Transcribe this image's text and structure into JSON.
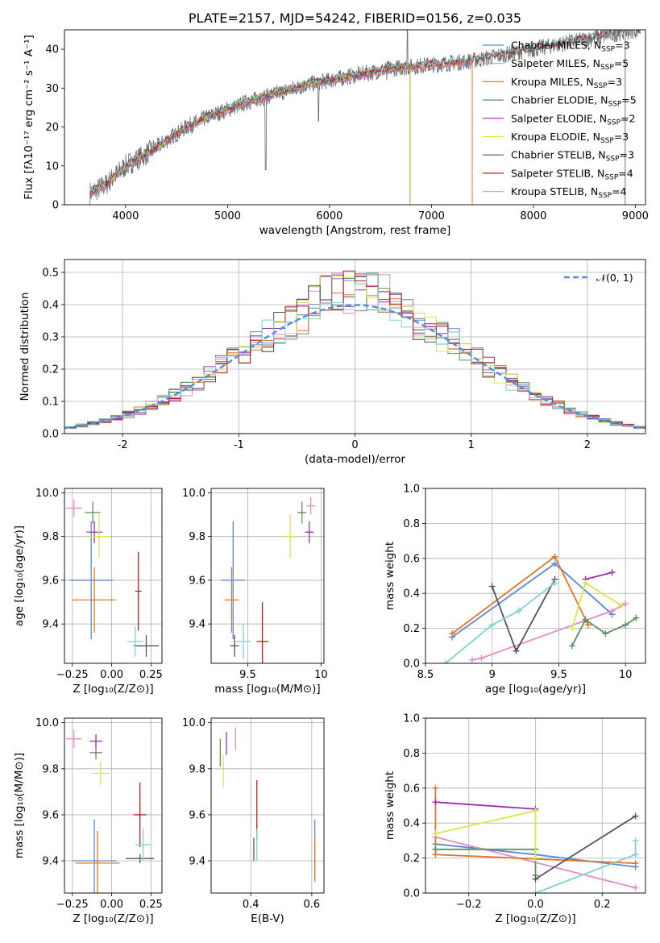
{
  "colors": {
    "Chabrier MILES": "#5b8ad6",
    "Salpeter MILES": "#e58ac8",
    "Kroupa MILES": "#e0762a",
    "Chabrier ELODIE": "#5f8e5f",
    "Salpeter ELODIE": "#9a2fb0",
    "Kroupa ELODIE": "#d9e64a",
    "Chabrier STELIB": "#555555",
    "Salpeter STELIB": "#b91d1d",
    "Kroupa STELIB": "#7fd3d1"
  },
  "chart_data": [
    {
      "id": "spectrum",
      "type": "line",
      "title": "PLATE=2157, MJD=54242, FIBERID=0156, z=0.035",
      "xlabel": "wavelength [Angstrom, rest frame]",
      "ylabel": "Flux [fλ10⁻¹⁷ erg cm⁻² s⁻¹ A⁻¹]",
      "xlim": [
        3400,
        9100
      ],
      "ylim": [
        0,
        45
      ],
      "xticks": [
        4000,
        5000,
        6000,
        7000,
        8000,
        9000
      ],
      "yticks": [
        0,
        10,
        20,
        30,
        40
      ],
      "legend": [
        "Chabrier MILES, N_SSP=3",
        "Salpeter MILES, N_SSP=5",
        "Kroupa MILES, N_SSP=3",
        "Chabrier ELODIE, N_SSP=5",
        "Salpeter ELODIE, N_SSP=2",
        "Kroupa ELODIE, N_SSP=3",
        "Chabrier STELIB, N_SSP=3",
        "Salpeter STELIB, N_SSP=4",
        "Kroupa STELIB, N_SSP=4"
      ],
      "legend_position": "upper right",
      "data_continuum": {
        "x": [
          3650,
          3800,
          4000,
          4200,
          4400,
          4600,
          4800,
          5000,
          5200,
          5400,
          5600,
          5800,
          6000,
          6200,
          6400,
          6600,
          6800,
          7000,
          7200,
          7400,
          7600,
          7800,
          8000,
          8200,
          8400,
          8600,
          8800,
          9000
        ],
        "y": [
          3,
          5,
          10,
          13,
          16.5,
          20,
          22.5,
          24.5,
          26.5,
          28,
          29.5,
          31,
          32,
          33,
          34,
          35,
          35.5,
          36,
          36.5,
          37,
          38,
          39,
          40,
          41,
          42,
          43,
          44,
          45
        ]
      },
      "model_ranges": [
        {
          "name": "Chabrier MILES",
          "from": 3650,
          "to": 7400
        },
        {
          "name": "Salpeter MILES",
          "from": 3650,
          "to": 7400
        },
        {
          "name": "Kroupa MILES",
          "from": 3650,
          "to": 7400
        },
        {
          "name": "Chabrier ELODIE",
          "from": 3650,
          "to": 6790
        },
        {
          "name": "Salpeter ELODIE",
          "from": 3650,
          "to": 6790
        },
        {
          "name": "Kroupa ELODIE",
          "from": 3650,
          "to": 6790
        },
        {
          "name": "Chabrier STELIB",
          "from": 3650,
          "to": 8900
        },
        {
          "name": "Salpeter STELIB",
          "from": 3650,
          "to": 8900
        },
        {
          "name": "Kroupa STELIB",
          "from": 3650,
          "to": 8900
        }
      ]
    },
    {
      "id": "residuals",
      "type": "histogram",
      "xlabel": "(data-model)/error",
      "ylabel": "Normed distribution",
      "xlim": [
        -2.5,
        2.5
      ],
      "ylim": [
        0,
        0.54
      ],
      "xticks": [
        -2,
        -1,
        0,
        1,
        2
      ],
      "yticks": [
        0.0,
        0.1,
        0.2,
        0.3,
        0.4,
        0.5
      ],
      "bin_width": 0.1,
      "reference_curve": "N(0,1)",
      "legend": [
        "𝒩(0, 1)"
      ],
      "legend_position": "upper right"
    },
    {
      "id": "z-age",
      "type": "errorbar",
      "xlabel": "Z [log₁₀(Z/Z⊙)]",
      "ylabel": "age  [log₁₀(age/yr)]",
      "xlim": [
        -0.3,
        0.32
      ],
      "ylim": [
        9.22,
        10.02
      ],
      "xticks": [
        -0.25,
        0.0,
        0.25
      ],
      "xticklabels": [
        "−0.25",
        "0.00",
        "0.25"
      ],
      "yticks": [
        9.4,
        9.6,
        9.8,
        10.0
      ],
      "points": [
        {
          "name": "Chabrier MILES",
          "x": -0.13,
          "y": 9.6,
          "ex": 0.14,
          "ey": 0.27
        },
        {
          "name": "Salpeter MILES",
          "x": -0.24,
          "y": 9.93,
          "ex": 0.05,
          "ey": 0.04
        },
        {
          "name": "Kroupa MILES",
          "x": -0.11,
          "y": 9.51,
          "ex": 0.14,
          "ey": 0.15
        },
        {
          "name": "Chabrier ELODIE",
          "x": -0.12,
          "y": 9.91,
          "ex": 0.05,
          "ey": 0.05
        },
        {
          "name": "Salpeter ELODIE",
          "x": -0.11,
          "y": 9.82,
          "ex": 0.05,
          "ey": 0.05
        },
        {
          "name": "Kroupa ELODIE",
          "x": -0.08,
          "y": 9.8,
          "ex": 0.07,
          "ey": 0.1
        },
        {
          "name": "Chabrier STELIB",
          "x": 0.22,
          "y": 9.3,
          "ex": 0.08,
          "ey": 0.05
        },
        {
          "name": "Salpeter STELIB",
          "x": 0.17,
          "y": 9.55,
          "ex": 0.02,
          "ey": 0.18
        },
        {
          "name": "Kroupa STELIB",
          "x": 0.15,
          "y": 9.32,
          "ex": 0.05,
          "ey": 0.07
        }
      ]
    },
    {
      "id": "mass-age",
      "type": "errorbar",
      "xlabel": "mass [log₁₀(M/M⊙)]",
      "ylabel": "",
      "xlim": [
        9.25,
        10.02
      ],
      "ylim": [
        9.22,
        10.02
      ],
      "xticks": [
        9.5,
        10.0
      ],
      "yticks": [
        9.4,
        9.6,
        9.8,
        10.0
      ],
      "points": [
        {
          "name": "Chabrier MILES",
          "x": 9.4,
          "y": 9.6,
          "ex": 0.08,
          "ey": 0.27
        },
        {
          "name": "Salpeter MILES",
          "x": 9.93,
          "y": 9.94,
          "ex": 0.03,
          "ey": 0.04
        },
        {
          "name": "Kroupa MILES",
          "x": 9.39,
          "y": 9.51,
          "ex": 0.05,
          "ey": 0.15
        },
        {
          "name": "Chabrier ELODIE",
          "x": 9.87,
          "y": 9.91,
          "ex": 0.03,
          "ey": 0.05
        },
        {
          "name": "Salpeter ELODIE",
          "x": 9.92,
          "y": 9.82,
          "ex": 0.03,
          "ey": 0.05
        },
        {
          "name": "Kroupa ELODIE",
          "x": 9.79,
          "y": 9.8,
          "ex": 0.04,
          "ey": 0.1
        },
        {
          "name": "Chabrier STELIB",
          "x": 9.41,
          "y": 9.3,
          "ex": 0.03,
          "ey": 0.05
        },
        {
          "name": "Salpeter STELIB",
          "x": 9.6,
          "y": 9.32,
          "ex": 0.04,
          "ey": 0.18
        },
        {
          "name": "Kroupa STELIB",
          "x": 9.47,
          "y": 9.32,
          "ex": 0.05,
          "ey": 0.08
        }
      ]
    },
    {
      "id": "age-massweight",
      "type": "line",
      "xlabel": "age  [log₁₀(age/yr)]",
      "ylabel": "mass weight",
      "xlim": [
        8.5,
        10.15
      ],
      "ylim": [
        0,
        1
      ],
      "xticks": [
        8.5,
        9.0,
        9.5,
        10.0
      ],
      "yticks": [
        0.0,
        0.2,
        0.4,
        0.6,
        0.8,
        1.0
      ],
      "series": [
        {
          "name": "Chabrier MILES",
          "points": [
            [
              8.7,
              0.15
            ],
            [
              9.47,
              0.57
            ],
            [
              9.9,
              0.28
            ]
          ]
        },
        {
          "name": "Salpeter MILES",
          "points": [
            [
              8.85,
              0.02
            ],
            [
              8.92,
              0.03
            ],
            [
              9.9,
              0.3
            ],
            [
              10.0,
              0.34
            ]
          ]
        },
        {
          "name": "Kroupa MILES",
          "points": [
            [
              8.7,
              0.17
            ],
            [
              9.47,
              0.61
            ],
            [
              9.72,
              0.22
            ]
          ]
        },
        {
          "name": "Chabrier ELODIE",
          "points": [
            [
              9.6,
              0.1
            ],
            [
              9.7,
              0.25
            ],
            [
              9.85,
              0.17
            ],
            [
              10.0,
              0.22
            ],
            [
              10.08,
              0.26
            ]
          ]
        },
        {
          "name": "Salpeter ELODIE",
          "points": [
            [
              9.7,
              0.48
            ],
            [
              9.9,
              0.52
            ]
          ]
        },
        {
          "name": "Kroupa ELODIE",
          "points": [
            [
              9.6,
              0.2
            ],
            [
              9.7,
              0.46
            ],
            [
              9.97,
              0.33
            ]
          ]
        },
        {
          "name": "Chabrier STELIB",
          "points": [
            [
              9.0,
              0.44
            ],
            [
              9.18,
              0.07
            ],
            [
              9.47,
              0.48
            ]
          ]
        },
        {
          "name": "Salpeter STELIB",
          "points": []
        },
        {
          "name": "Kroupa STELIB",
          "points": [
            [
              8.65,
              0.0
            ],
            [
              9.0,
              0.22
            ],
            [
              9.2,
              0.3
            ],
            [
              9.47,
              0.46
            ]
          ]
        }
      ]
    },
    {
      "id": "z-mass",
      "type": "errorbar",
      "xlabel": "Z [log₁₀(Z/Z⊙)]",
      "ylabel": "mass [log₁₀(M/M⊙)]",
      "xlim": [
        -0.3,
        0.32
      ],
      "ylim": [
        9.26,
        10.02
      ],
      "xticks": [
        -0.25,
        0.0,
        0.25
      ],
      "xticklabels": [
        "−0.25",
        "0.00",
        "0.25"
      ],
      "yticks": [
        9.4,
        9.6,
        9.8,
        10.0
      ],
      "points": [
        {
          "name": "Chabrier MILES",
          "x": -0.11,
          "y": 9.4,
          "ex": 0.14,
          "ey": 0.18
        },
        {
          "name": "Salpeter MILES",
          "x": -0.24,
          "y": 9.93,
          "ex": 0.05,
          "ey": 0.04
        },
        {
          "name": "Kroupa MILES",
          "x": -0.09,
          "y": 9.39,
          "ex": 0.14,
          "ey": 0.14
        },
        {
          "name": "Chabrier ELODIE",
          "x": -0.1,
          "y": 9.87,
          "ex": 0.04,
          "ey": 0.03
        },
        {
          "name": "Salpeter ELODIE",
          "x": -0.1,
          "y": 9.92,
          "ex": 0.04,
          "ey": 0.03
        },
        {
          "name": "Kroupa ELODIE",
          "x": -0.07,
          "y": 9.78,
          "ex": 0.06,
          "ey": 0.05
        },
        {
          "name": "Chabrier STELIB",
          "x": 0.18,
          "y": 9.41,
          "ex": 0.09,
          "ey": 0.02
        },
        {
          "name": "Salpeter STELIB",
          "x": 0.18,
          "y": 9.6,
          "ex": 0.04,
          "ey": 0.14
        },
        {
          "name": "Kroupa STELIB",
          "x": 0.2,
          "y": 9.47,
          "ex": 0.05,
          "ey": 0.07
        }
      ]
    },
    {
      "id": "ebv-mass",
      "type": "errorbar",
      "xlabel": "E(B-V)",
      "ylabel": "",
      "xlim": [
        0.27,
        0.64
      ],
      "ylim": [
        9.26,
        10.02
      ],
      "xticks": [
        0.2,
        0.4,
        0.6
      ],
      "yticks": [
        9.4,
        9.6,
        9.8,
        10.0
      ],
      "points": [
        {
          "name": "Chabrier MILES",
          "x": 0.61,
          "y": 9.45,
          "ex": 0.0,
          "ey": 0.13
        },
        {
          "name": "Salpeter MILES",
          "x": 0.35,
          "y": 9.93,
          "ex": 0.0,
          "ey": 0.05
        },
        {
          "name": "Kroupa MILES",
          "x": 0.61,
          "y": 9.41,
          "ex": 0.0,
          "ey": 0.1
        },
        {
          "name": "Chabrier ELODIE",
          "x": 0.3,
          "y": 9.87,
          "ex": 0.0,
          "ey": 0.06
        },
        {
          "name": "Salpeter ELODIE",
          "x": 0.32,
          "y": 9.91,
          "ex": 0.0,
          "ey": 0.05
        },
        {
          "name": "Kroupa ELODIE",
          "x": 0.31,
          "y": 9.79,
          "ex": 0.0,
          "ey": 0.07
        },
        {
          "name": "Chabrier STELIB",
          "x": 0.41,
          "y": 9.45,
          "ex": 0.0,
          "ey": 0.05
        },
        {
          "name": "Salpeter STELIB",
          "x": 0.42,
          "y": 9.62,
          "ex": 0.0,
          "ey": 0.13
        },
        {
          "name": "Kroupa STELIB",
          "x": 0.42,
          "y": 9.47,
          "ex": 0.0,
          "ey": 0.07
        }
      ]
    },
    {
      "id": "z-massweight",
      "type": "line",
      "xlabel": "Z [log₁₀(Z/Z⊙)]",
      "ylabel": "mass weight",
      "xlim": [
        -0.33,
        0.33
      ],
      "ylim": [
        0,
        1
      ],
      "xticks": [
        -0.2,
        0.0,
        0.2
      ],
      "xticklabels": [
        "−0.2",
        "0.0",
        "0.2"
      ],
      "yticks": [
        0.0,
        0.2,
        0.4,
        0.6,
        0.8,
        1.0
      ],
      "series": [
        {
          "name": "Chabrier MILES",
          "points": [
            [
              -0.3,
              0.28
            ],
            [
              0.0,
              0.22
            ],
            [
              0.3,
              0.15
            ]
          ]
        },
        {
          "name": "Salpeter MILES",
          "points": [
            [
              -0.3,
              0.32
            ],
            [
              0.3,
              0.03
            ]
          ]
        },
        {
          "name": "Kroupa MILES",
          "points": [
            [
              -0.3,
              0.6
            ],
            [
              -0.3,
              0.22
            ],
            [
              0.3,
              0.17
            ]
          ]
        },
        {
          "name": "Chabrier ELODIE",
          "points": [
            [
              -0.3,
              0.25
            ],
            [
              0.0,
              0.25
            ],
            [
              0.0,
              0.1
            ]
          ]
        },
        {
          "name": "Salpeter ELODIE",
          "points": [
            [
              -0.3,
              0.52
            ],
            [
              0.0,
              0.48
            ]
          ]
        },
        {
          "name": "Kroupa ELODIE",
          "points": [
            [
              -0.3,
              0.34
            ],
            [
              0.0,
              0.47
            ],
            [
              0.0,
              0.2
            ]
          ]
        },
        {
          "name": "Chabrier STELIB",
          "points": [
            [
              0.0,
              0.08
            ],
            [
              0.3,
              0.44
            ]
          ]
        },
        {
          "name": "Salpeter STELIB",
          "points": []
        },
        {
          "name": "Kroupa STELIB",
          "points": [
            [
              0.0,
              0.0
            ],
            [
              0.3,
              0.22
            ],
            [
              0.3,
              0.3
            ]
          ]
        }
      ]
    }
  ]
}
